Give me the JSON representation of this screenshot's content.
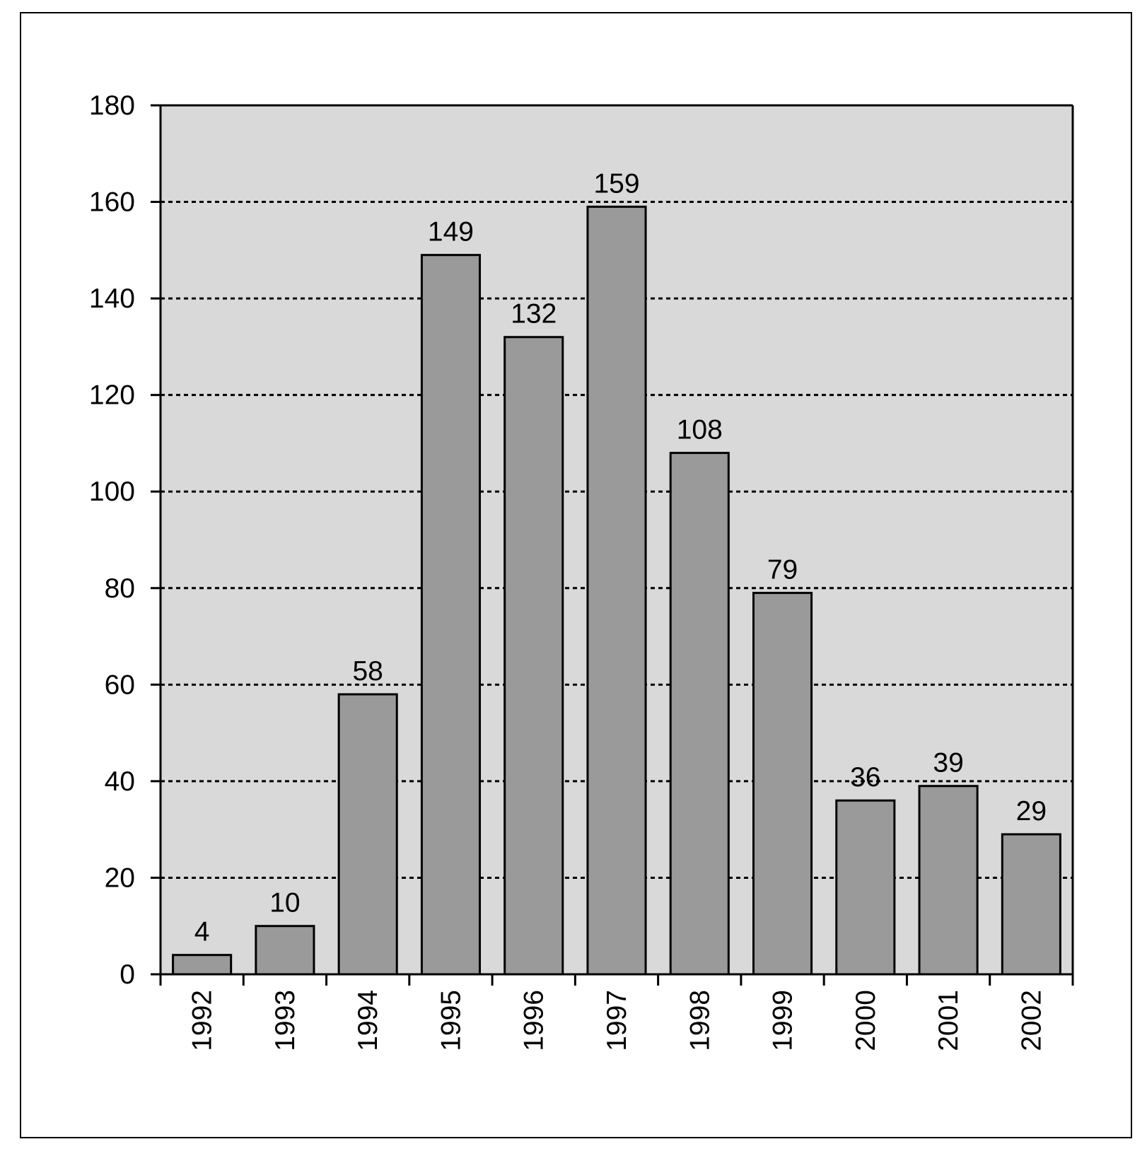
{
  "chart_data": {
    "type": "bar",
    "categories": [
      "1992",
      "1993",
      "1994",
      "1995",
      "1996",
      "1997",
      "1998",
      "1999",
      "2000",
      "2001",
      "2002"
    ],
    "values": [
      4,
      10,
      58,
      149,
      132,
      159,
      108,
      79,
      36,
      39,
      29
    ],
    "title": "",
    "xlabel": "",
    "ylabel": "",
    "ylim": [
      0,
      180
    ],
    "yticks": [
      0,
      20,
      40,
      60,
      80,
      100,
      120,
      140,
      160,
      180
    ],
    "grid": "horizontal dotted",
    "legend": "none",
    "data_labels": true,
    "x_tick_rotation": "vertical"
  },
  "colors": {
    "plot_background": "#d9d9d9",
    "bar_fill": "#9a9a9a",
    "bar_stroke": "#000000",
    "grid": "#000000"
  }
}
